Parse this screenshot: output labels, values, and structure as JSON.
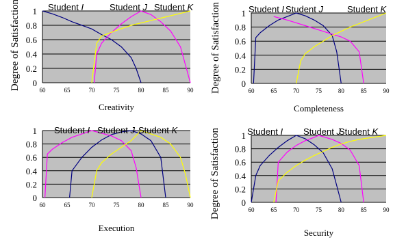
{
  "colors": {
    "plot_bg": "#c0c0c0",
    "grid": "#000000",
    "student_1": "#000080",
    "student_2": "#ff00ff",
    "student_3": "#ffff00"
  },
  "chart_data": [
    {
      "type": "line",
      "xlabel": "Creativity",
      "ylabel": "Degree of Satisfaction",
      "xlim": [
        60,
        90
      ],
      "ylim": [
        0,
        1
      ],
      "xticks": [
        60,
        65,
        70,
        75,
        80,
        85,
        90
      ],
      "yticks": [
        "0",
        "0.2",
        "0.4",
        "0.6",
        "0.8",
        "1"
      ],
      "legend_labels": [
        "Student I",
        "Student J",
        "Student K"
      ],
      "series": [
        {
          "color": "#000080",
          "x": [
            60,
            62,
            64,
            66,
            68,
            70,
            72,
            74,
            76,
            78,
            79,
            80
          ],
          "y": [
            1,
            0.96,
            0.91,
            0.85,
            0.8,
            0.75,
            0.67,
            0.6,
            0.5,
            0.35,
            0.2,
            0
          ]
        },
        {
          "color": "#ff00ff",
          "x": [
            70.5,
            71,
            72,
            74,
            76,
            78,
            80,
            82,
            84,
            86,
            88,
            89,
            90
          ],
          "y": [
            0,
            0.4,
            0.55,
            0.7,
            0.82,
            0.92,
            1,
            0.95,
            0.85,
            0.72,
            0.5,
            0.25,
            0
          ]
        },
        {
          "color": "#ffff00",
          "x": [
            70,
            71,
            72,
            75,
            78,
            81,
            84,
            87,
            90
          ],
          "y": [
            0,
            0.55,
            0.65,
            0.73,
            0.8,
            0.85,
            0.9,
            0.95,
            1
          ]
        }
      ]
    },
    {
      "type": "line",
      "xlabel": "Completeness",
      "ylabel": "Degree of Satisfaction",
      "xlim": [
        60,
        90
      ],
      "ylim": [
        0,
        1
      ],
      "xticks": [
        60,
        65,
        70,
        75,
        80,
        85,
        90
      ],
      "yticks": [
        "0",
        "0.2",
        "0.4",
        "0.6",
        "0.8",
        "1"
      ],
      "legend_labels": [
        "Student I",
        "Student J",
        "Student K"
      ],
      "series": [
        {
          "color": "#000080",
          "x": [
            60.5,
            61,
            62,
            64,
            66,
            68,
            70,
            72,
            74,
            76,
            78,
            79,
            80
          ],
          "y": [
            0,
            0.65,
            0.72,
            0.82,
            0.9,
            0.95,
            1,
            0.96,
            0.9,
            0.82,
            0.68,
            0.45,
            0
          ]
        },
        {
          "color": "#ff00ff",
          "x": [
            65,
            68,
            70,
            72,
            74,
            76,
            78,
            80,
            82,
            84,
            85
          ],
          "y": [
            0.95,
            0.9,
            0.86,
            0.82,
            0.78,
            0.74,
            0.7,
            0.66,
            0.6,
            0.45,
            0
          ]
        },
        {
          "color": "#ffff00",
          "x": [
            70,
            71,
            72,
            74,
            76,
            78,
            80,
            82,
            84,
            86,
            88,
            90
          ],
          "y": [
            0,
            0.32,
            0.42,
            0.52,
            0.6,
            0.68,
            0.74,
            0.8,
            0.85,
            0.9,
            0.95,
            1
          ]
        }
      ]
    },
    {
      "type": "line",
      "xlabel": "Execution",
      "ylabel": "",
      "xlim": [
        60,
        90
      ],
      "ylim": [
        0,
        1
      ],
      "xticks": [
        60,
        65,
        70,
        75,
        80,
        85,
        90
      ],
      "yticks": [
        "0",
        "0.2",
        "0.4",
        "0.6",
        "0.8",
        "1"
      ],
      "legend_labels": [
        "Student I",
        "Student J",
        "Student K"
      ],
      "series": [
        {
          "color": "#000080",
          "x": [
            65.5,
            66,
            68,
            70,
            72,
            74,
            76,
            78,
            80,
            82,
            84,
            85
          ],
          "y": [
            0,
            0.4,
            0.6,
            0.75,
            0.86,
            0.94,
            0.98,
            1,
            0.95,
            0.85,
            0.6,
            0
          ]
        },
        {
          "color": "#ff00ff",
          "x": [
            60.5,
            61,
            62,
            64,
            66,
            68,
            70,
            72,
            74,
            76,
            78,
            79,
            80
          ],
          "y": [
            0,
            0.65,
            0.72,
            0.82,
            0.9,
            0.95,
            1,
            0.96,
            0.92,
            0.85,
            0.7,
            0.45,
            0
          ]
        },
        {
          "color": "#ffff00",
          "x": [
            70,
            71,
            72,
            74,
            76,
            78,
            80,
            82,
            84,
            86,
            88,
            89,
            90
          ],
          "y": [
            0,
            0.4,
            0.52,
            0.65,
            0.75,
            0.85,
            1,
            0.95,
            0.9,
            0.8,
            0.6,
            0.35,
            0
          ]
        }
      ]
    },
    {
      "type": "line",
      "xlabel": "Security",
      "ylabel": "Degree of Satisfaction",
      "xlim": [
        60,
        90
      ],
      "ylim": [
        0,
        1
      ],
      "xticks": [
        60,
        65,
        70,
        75,
        80,
        85,
        90
      ],
      "yticks": [
        "0",
        "0.2",
        "0.4",
        "0.6",
        "0.8",
        "1"
      ],
      "legend_labels": [
        "Student I",
        "Student J",
        "Student K"
      ],
      "series": [
        {
          "color": "#000080",
          "x": [
            60,
            61,
            62,
            64,
            66,
            68,
            70,
            72,
            74,
            76,
            78,
            79,
            80
          ],
          "y": [
            0,
            0.4,
            0.55,
            0.7,
            0.82,
            0.92,
            1,
            0.95,
            0.86,
            0.74,
            0.5,
            0.25,
            0
          ]
        },
        {
          "color": "#ff00ff",
          "x": [
            65.5,
            66,
            68,
            70,
            72,
            74,
            75,
            76,
            78,
            80,
            82,
            84,
            85
          ],
          "y": [
            0,
            0.6,
            0.75,
            0.85,
            0.92,
            0.97,
            1,
            0.98,
            0.94,
            0.88,
            0.78,
            0.55,
            0
          ]
        },
        {
          "color": "#ffff00",
          "x": [
            65,
            66,
            68,
            70,
            72,
            74,
            76,
            78,
            80,
            82,
            84,
            86,
            88,
            90
          ],
          "y": [
            0,
            0.32,
            0.45,
            0.55,
            0.63,
            0.7,
            0.76,
            0.82,
            0.87,
            0.91,
            0.94,
            0.96,
            0.98,
            1
          ]
        }
      ]
    }
  ]
}
